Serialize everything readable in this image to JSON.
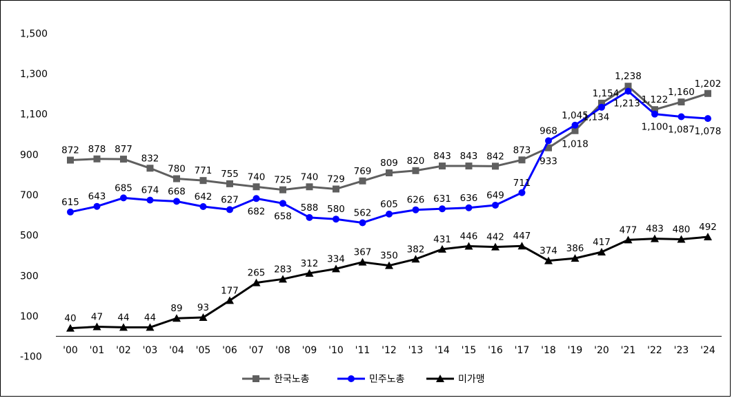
{
  "chart_data": {
    "type": "line",
    "categories": [
      "'00",
      "'01",
      "'02",
      "'03",
      "'04",
      "'05",
      "'06",
      "'07",
      "'08",
      "'09",
      "'10",
      "'11",
      "'12",
      "'13",
      "'14",
      "'15",
      "'16",
      "'17",
      "'18",
      "'19",
      "'20",
      "'21",
      "'22",
      "'23",
      "'24"
    ],
    "series": [
      {
        "name": "한국노총",
        "color": "#5f5f5f",
        "marker": "square",
        "values": [
          872,
          878,
          877,
          832,
          780,
          771,
          755,
          740,
          725,
          740,
          729,
          769,
          809,
          820,
          843,
          843,
          842,
          873,
          933,
          1018,
          1154,
          1238,
          1122,
          1160,
          1202
        ],
        "labels": [
          "872",
          "878",
          "877",
          "832",
          "780",
          "771",
          "755",
          "740",
          "725",
          "740",
          "729",
          "769",
          "809",
          "820",
          "843",
          "843",
          "842",
          "873",
          "933",
          "1,018",
          "1,154",
          "1,238",
          "1,122",
          "1,160",
          "1,202"
        ]
      },
      {
        "name": "민주노총",
        "color": "#0000ff",
        "marker": "circle",
        "values": [
          615,
          643,
          685,
          674,
          668,
          642,
          627,
          682,
          658,
          588,
          580,
          562,
          605,
          626,
          631,
          636,
          649,
          711,
          968,
          1045,
          1134,
          1213,
          1100,
          1087,
          1078
        ],
        "labels": [
          "615",
          "643",
          "685",
          "674",
          "668",
          "642",
          "627",
          "682",
          "658",
          "588",
          "580",
          "562",
          "605",
          "626",
          "631",
          "636",
          "649",
          "711",
          "968",
          "1,045",
          "1,134",
          "1,213",
          "1,100",
          "1,087",
          "1,078"
        ]
      },
      {
        "name": "미가맹",
        "color": "#000000",
        "marker": "triangle",
        "values": [
          40,
          47,
          44,
          44,
          89,
          93,
          177,
          265,
          283,
          312,
          334,
          367,
          350,
          382,
          431,
          446,
          442,
          447,
          374,
          386,
          417,
          477,
          483,
          480,
          492
        ],
        "labels": [
          "40",
          "47",
          "44",
          "44",
          "89",
          "93",
          "177",
          "265",
          "283",
          "312",
          "334",
          "367",
          "350",
          "382",
          "431",
          "446",
          "442",
          "447",
          "374",
          "386",
          "417",
          "477",
          "483",
          "480",
          "492"
        ]
      }
    ],
    "yticks": [
      -100,
      100,
      300,
      500,
      700,
      900,
      1100,
      1300,
      1500
    ],
    "ytick_labels": [
      "-100",
      "100",
      "300",
      "500",
      "700",
      "900",
      "1,100",
      "1,300",
      "1,500"
    ],
    "ylim": [
      -100,
      1500
    ],
    "x_axis_at": 0,
    "grid": false,
    "legend_position": "bottom-center"
  }
}
